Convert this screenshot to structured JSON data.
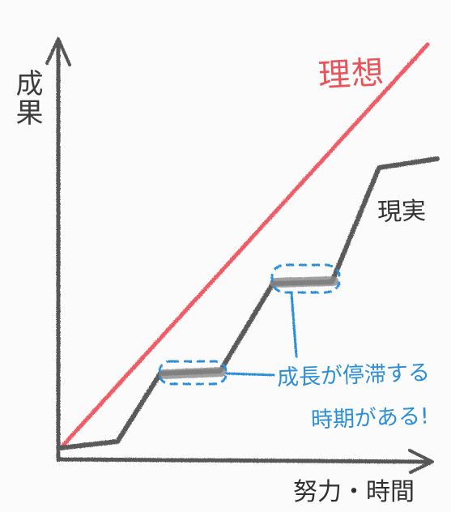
{
  "labels": {
    "y_axis": "成果",
    "x_axis": "努力・時間",
    "ideal": "理想",
    "reality": "現実",
    "stagnation_line1": "成長が停滞する",
    "stagnation_line2": "時期がある!"
  },
  "colors": {
    "axis": "#565656",
    "ideal_line": "#ee5c66",
    "reality_line": "#5a5a5a",
    "annotation": "#2d8fd6",
    "plateau_fill": "#8a8a8a"
  }
}
